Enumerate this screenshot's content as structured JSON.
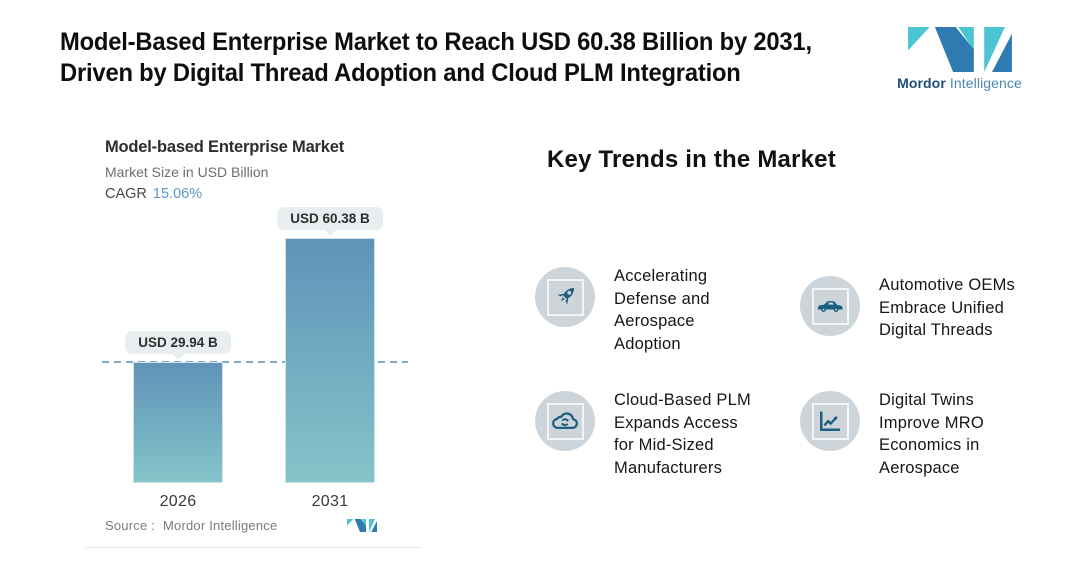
{
  "header": {
    "title": "Model-Based Enterprise Market to Reach USD 60.38 Billion by 2031,\nDriven by Digital Thread Adoption and Cloud PLM Integration",
    "brand": {
      "name_bold": "Mordor",
      "name_light": "Intelligence"
    }
  },
  "chart_card": {
    "title": "Model-based Enterprise Market",
    "subtitle": "Market Size in USD Billion",
    "cagr_label": "CAGR",
    "cagr_value": "15.06%",
    "source_label": "Source :",
    "source_value": "Mordor Intelligence"
  },
  "chart_data": {
    "type": "bar",
    "title": "Model-based Enterprise Market",
    "ylabel": "Market Size in USD Billion",
    "cagr_percent": 15.06,
    "categories": [
      "2026",
      "2031"
    ],
    "values": [
      29.94,
      60.38
    ],
    "value_labels": [
      "USD 29.94 B",
      "USD 60.38 B"
    ],
    "unit": "USD Billion",
    "ylim": [
      0,
      60.38
    ],
    "grid": false,
    "legend": "none",
    "reference_line": {
      "value": 29.94,
      "style": "dashed"
    },
    "bar_color_top": "#5f93b9",
    "bar_color_bottom": "#85c5c9"
  },
  "trends": {
    "heading": "Key Trends in the Market",
    "items": [
      {
        "icon": "rocket-icon",
        "text": "Accelerating\nDefense and\nAerospace\nAdoption"
      },
      {
        "icon": "car-icon",
        "text": "Automotive OEMs\nEmbrace Unified\nDigital Threads"
      },
      {
        "icon": "cloud-sync-icon",
        "text": "Cloud-Based PLM\nExpands Access\nfor Mid-Sized\nManufacturers"
      },
      {
        "icon": "line-chart-icon",
        "text": "Digital Twins\nImprove MRO\nEconomics in\nAerospace"
      }
    ]
  },
  "colors": {
    "accent_blue": "#5b97c9",
    "dashed_line": "#7fa9c9",
    "label_box_bg": "#e8eef0",
    "logo_blue": "#2f7ab0",
    "logo_teal": "#4cc5d2",
    "icon_teal": "#1d5f80",
    "icon_circle_bg": "#cdd5da"
  }
}
